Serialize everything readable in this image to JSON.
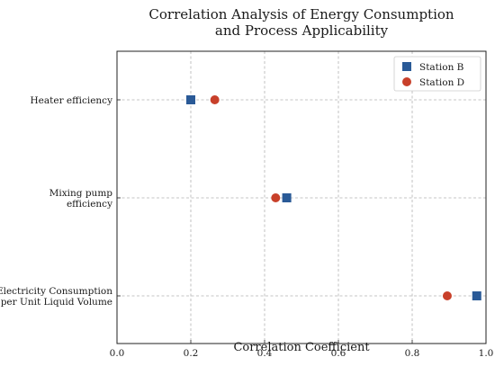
{
  "chart_data": {
    "type": "scatter",
    "title": [
      "Correlation Analysis of Energy Consumption",
      "and Process Applicability"
    ],
    "xlabel": "Correlation Coefficient",
    "ylabel": "",
    "xlim": [
      0.0,
      1.0
    ],
    "x_ticks": [
      "0.0",
      "0.2",
      "0.4",
      "0.6",
      "0.8",
      "1.0"
    ],
    "grid": true,
    "legend_position": "top-right",
    "categories": [
      [
        "Heater efficiency"
      ],
      [
        "Mixing pump",
        "efficiency"
      ],
      [
        "Electricity Consumption",
        "per Unit Liquid Volume"
      ]
    ],
    "series": [
      {
        "name": "Station B",
        "marker": "square",
        "color": "#2a5a97",
        "values": [
          0.2,
          0.46,
          0.975
        ]
      },
      {
        "name": "Station D",
        "marker": "circle",
        "color": "#c8402a",
        "values": [
          0.265,
          0.43,
          0.895
        ]
      }
    ]
  }
}
